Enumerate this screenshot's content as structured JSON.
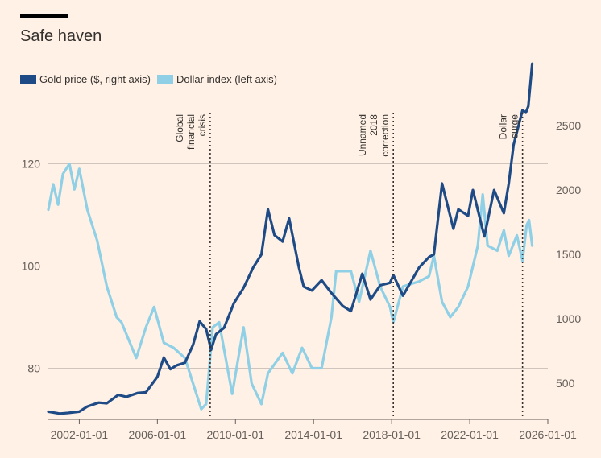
{
  "title": "Safe haven",
  "legend": {
    "gold": "Gold price ($, right axis)",
    "dollar": "Dollar index (left axis)"
  },
  "colors": {
    "gold": "#1e4b86",
    "dollar": "#8fd0e6",
    "grid": "#cfc5bc",
    "background": "#fff1e5",
    "annotation": "#33302e"
  },
  "chart_data": {
    "type": "line",
    "x_axis": {
      "type": "date",
      "range": [
        "2000-06-01",
        "2026-01-01"
      ],
      "ticks": [
        "2002-01-01",
        "2006-01-01",
        "2010-01-01",
        "2014-01-01",
        "2018-01-01",
        "2022-01-01",
        "2026-01-01"
      ]
    },
    "left_axis": {
      "ticks": [
        80,
        100,
        120
      ],
      "range": [
        70,
        130
      ]
    },
    "right_axis": {
      "ticks": [
        500,
        1000,
        1500,
        2000,
        2500
      ],
      "range": [
        220,
        2600
      ]
    },
    "grid": true,
    "legend_position": "top-left",
    "annotations": [
      {
        "date": "2008-09-15",
        "lines": [
          "Global",
          "financial",
          "crisis"
        ]
      },
      {
        "date": "2018-02-01",
        "lines": [
          "Unnamed",
          "2018",
          "correction"
        ]
      },
      {
        "date": "2024-09-15",
        "lines": [
          "Dollar",
          "surge"
        ]
      }
    ],
    "series": [
      {
        "name": "Gold price ($, right axis)",
        "axis": "right",
        "points": [
          [
            "2000-06-01",
            280
          ],
          [
            "2001-01-01",
            265
          ],
          [
            "2001-06-01",
            270
          ],
          [
            "2002-01-01",
            280
          ],
          [
            "2002-06-01",
            320
          ],
          [
            "2003-01-01",
            350
          ],
          [
            "2003-06-01",
            345
          ],
          [
            "2004-01-01",
            410
          ],
          [
            "2004-06-01",
            395
          ],
          [
            "2005-01-01",
            425
          ],
          [
            "2005-06-01",
            430
          ],
          [
            "2006-01-01",
            550
          ],
          [
            "2006-05-01",
            700
          ],
          [
            "2006-09-01",
            610
          ],
          [
            "2007-01-01",
            640
          ],
          [
            "2007-06-01",
            660
          ],
          [
            "2007-11-01",
            800
          ],
          [
            "2008-03-01",
            980
          ],
          [
            "2008-07-01",
            920
          ],
          [
            "2008-10-01",
            760
          ],
          [
            "2009-01-01",
            880
          ],
          [
            "2009-06-01",
            930
          ],
          [
            "2009-12-01",
            1120
          ],
          [
            "2010-06-01",
            1240
          ],
          [
            "2010-12-01",
            1400
          ],
          [
            "2011-05-01",
            1500
          ],
          [
            "2011-09-01",
            1850
          ],
          [
            "2012-01-01",
            1650
          ],
          [
            "2012-06-01",
            1600
          ],
          [
            "2012-10-01",
            1780
          ],
          [
            "2013-04-01",
            1400
          ],
          [
            "2013-07-01",
            1250
          ],
          [
            "2013-12-01",
            1220
          ],
          [
            "2014-06-01",
            1300
          ],
          [
            "2014-12-01",
            1200
          ],
          [
            "2015-07-01",
            1100
          ],
          [
            "2015-12-01",
            1060
          ],
          [
            "2016-07-01",
            1350
          ],
          [
            "2016-12-01",
            1150
          ],
          [
            "2017-06-01",
            1260
          ],
          [
            "2017-12-01",
            1280
          ],
          [
            "2018-02-01",
            1340
          ],
          [
            "2018-08-01",
            1180
          ],
          [
            "2019-06-01",
            1400
          ],
          [
            "2019-12-01",
            1480
          ],
          [
            "2020-03-01",
            1500
          ],
          [
            "2020-08-01",
            2050
          ],
          [
            "2021-03-01",
            1700
          ],
          [
            "2021-06-01",
            1850
          ],
          [
            "2021-12-01",
            1800
          ],
          [
            "2022-03-01",
            2000
          ],
          [
            "2022-10-01",
            1640
          ],
          [
            "2023-04-01",
            2000
          ],
          [
            "2023-10-01",
            1820
          ],
          [
            "2024-01-01",
            2050
          ],
          [
            "2024-04-01",
            2350
          ],
          [
            "2024-09-15",
            2620
          ],
          [
            "2024-11-15",
            2600
          ],
          [
            "2025-01-01",
            2650
          ],
          [
            "2025-03-15",
            2980
          ]
        ]
      },
      {
        "name": "Dollar index (left axis)",
        "axis": "left",
        "points": [
          [
            "2000-06-01",
            111
          ],
          [
            "2000-09-01",
            116
          ],
          [
            "2000-12-01",
            112
          ],
          [
            "2001-03-01",
            118
          ],
          [
            "2001-07-01",
            120
          ],
          [
            "2001-10-01",
            115
          ],
          [
            "2002-01-01",
            119
          ],
          [
            "2002-06-01",
            111
          ],
          [
            "2002-12-01",
            105
          ],
          [
            "2003-06-01",
            96
          ],
          [
            "2003-12-01",
            90
          ],
          [
            "2004-03-01",
            89
          ],
          [
            "2004-12-01",
            82
          ],
          [
            "2005-06-01",
            88
          ],
          [
            "2005-11-01",
            92
          ],
          [
            "2006-05-01",
            85
          ],
          [
            "2006-11-01",
            84
          ],
          [
            "2007-06-01",
            82
          ],
          [
            "2007-12-01",
            76
          ],
          [
            "2008-04-01",
            72
          ],
          [
            "2008-07-01",
            73
          ],
          [
            "2008-11-01",
            88
          ],
          [
            "2009-03-01",
            89
          ],
          [
            "2009-11-01",
            75
          ],
          [
            "2010-06-01",
            88
          ],
          [
            "2010-11-01",
            77
          ],
          [
            "2011-05-01",
            73
          ],
          [
            "2011-09-01",
            79
          ],
          [
            "2012-06-01",
            83
          ],
          [
            "2012-12-01",
            79
          ],
          [
            "2013-06-01",
            84
          ],
          [
            "2013-12-01",
            80
          ],
          [
            "2014-06-01",
            80
          ],
          [
            "2014-12-01",
            90
          ],
          [
            "2015-03-01",
            99
          ],
          [
            "2015-12-01",
            99
          ],
          [
            "2016-05-01",
            93
          ],
          [
            "2016-12-01",
            103
          ],
          [
            "2017-06-01",
            96
          ],
          [
            "2017-12-01",
            92
          ],
          [
            "2018-02-01",
            89
          ],
          [
            "2018-08-01",
            96
          ],
          [
            "2019-06-01",
            97
          ],
          [
            "2019-12-01",
            98
          ],
          [
            "2020-03-01",
            102
          ],
          [
            "2020-08-01",
            93
          ],
          [
            "2021-01-01",
            90
          ],
          [
            "2021-06-01",
            92
          ],
          [
            "2021-12-01",
            96
          ],
          [
            "2022-06-01",
            104
          ],
          [
            "2022-09-01",
            114
          ],
          [
            "2022-12-01",
            104
          ],
          [
            "2023-06-01",
            103
          ],
          [
            "2023-10-01",
            107
          ],
          [
            "2024-01-01",
            102
          ],
          [
            "2024-06-01",
            106
          ],
          [
            "2024-09-15",
            101
          ],
          [
            "2024-12-01",
            108
          ],
          [
            "2025-01-15",
            109
          ],
          [
            "2025-03-15",
            104
          ]
        ]
      }
    ]
  }
}
